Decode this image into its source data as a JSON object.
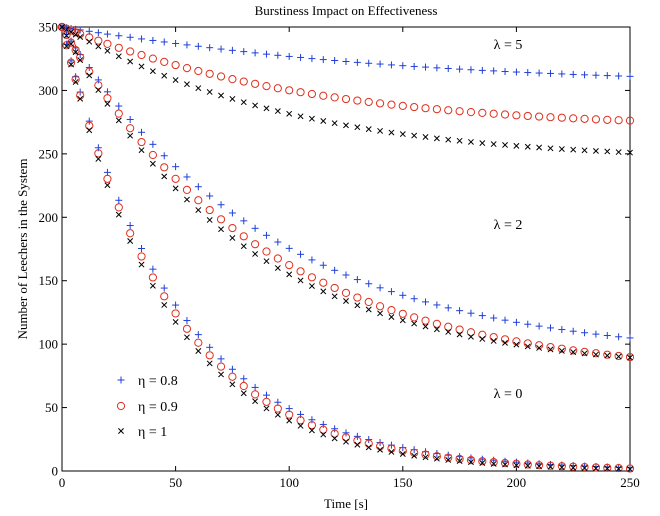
{
  "chart_data": {
    "type": "scatter",
    "title": "Burstiness Impact on Effectiveness",
    "xlabel": "Time [s]",
    "ylabel": "Number of Leechers in the System",
    "xlim": [
      0,
      250
    ],
    "ylim": [
      0,
      350
    ],
    "x_ticks": [
      0,
      50,
      100,
      150,
      200,
      250
    ],
    "y_ticks": [
      0,
      50,
      100,
      150,
      200,
      250,
      300,
      350
    ],
    "grid": false,
    "legend_position": "bottom-left",
    "x": [
      0,
      2,
      4,
      6,
      8,
      12,
      16,
      20,
      25,
      30,
      35,
      40,
      45,
      50,
      55,
      60,
      65,
      70,
      75,
      80,
      85,
      90,
      95,
      100,
      105,
      110,
      115,
      120,
      125,
      130,
      135,
      140,
      145,
      150,
      155,
      160,
      165,
      170,
      175,
      180,
      185,
      190,
      195,
      200,
      205,
      210,
      215,
      220,
      225,
      230,
      235,
      240,
      245,
      250
    ],
    "groups": [
      {
        "annotation": "λ = 5",
        "series": [
          {
            "name": "η = 0.8",
            "values": [
              350,
              349.4,
              348.8,
              348.2,
              347.7,
              346.6,
              345.5,
              344.4,
              343.1,
              341.9,
              340.6,
              339.4,
              338.2,
              337.0,
              335.9,
              334.8,
              333.7,
              332.6,
              331.6,
              330.6,
              329.6,
              328.6,
              327.7,
              326.8,
              326.0,
              325.1,
              324.3,
              323.6,
              322.8,
              322.1,
              321.4,
              320.8,
              320.1,
              319.5,
              318.9,
              318.4,
              317.8,
              317.3,
              316.8,
              316.3,
              315.8,
              315.4,
              314.9,
              314.5,
              314.1,
              313.7,
              313.4,
              313.0,
              312.6,
              312.3,
              312.0,
              311.7,
              311.4,
              311.1
            ]
          },
          {
            "name": "η = 0.9",
            "values": [
              350,
              348.6,
              347.2,
              345.8,
              344.5,
              341.8,
              339.2,
              336.7,
              333.6,
              330.7,
              327.9,
              325.1,
              322.5,
              320.0,
              317.6,
              315.3,
              313.1,
              311.0,
              308.9,
              307.0,
              305.2,
              303.4,
              301.7,
              300.1,
              298.6,
              297.2,
              295.8,
              294.5,
              293.2,
              292.0,
              290.9,
              289.8,
              288.8,
              287.8,
              286.9,
              286.0,
              285.2,
              284.4,
              283.6,
              282.9,
              282.3,
              281.6,
              281.0,
              280.4,
              279.9,
              279.4,
              278.9,
              278.5,
              278.0,
              277.6,
              277.2,
              276.8,
              276.5,
              276.2
            ]
          },
          {
            "name": "η = 1",
            "values": [
              350,
              348.0,
              346.0,
              344.0,
              342.1,
              338.4,
              334.7,
              331.2,
              326.9,
              322.8,
              318.9,
              315.2,
              311.6,
              308.2,
              304.9,
              301.8,
              298.8,
              296.0,
              293.3,
              290.7,
              288.2,
              285.9,
              283.7,
              281.6,
              279.6,
              277.7,
              275.9,
              274.2,
              272.5,
              271.0,
              269.5,
              268.1,
              266.8,
              265.6,
              264.4,
              263.3,
              262.2,
              261.2,
              260.3,
              259.4,
              258.5,
              257.7,
              257.0,
              256.3,
              255.6,
              255.0,
              254.4,
              253.8,
              253.3,
              252.8,
              252.3,
              251.9,
              251.4,
              251.0
            ]
          }
        ]
      },
      {
        "annotation": "λ = 2",
        "series": [
          {
            "name": "η = 0.8",
            "values": [
              350,
              344.4,
              338.9,
              333.5,
              328.3,
              318.1,
              308.3,
              298.9,
              287.7,
              277.1,
              267.0,
              257.5,
              248.5,
              239.9,
              231.8,
              224.1,
              216.8,
              209.9,
              203.4,
              197.2,
              191.3,
              185.8,
              180.5,
              175.5,
              170.8,
              166.4,
              162.2,
              158.2,
              154.5,
              150.9,
              147.6,
              144.4,
              141.4,
              138.5,
              135.8,
              133.3,
              130.9,
              128.6,
              126.4,
              124.4,
              122.5,
              120.6,
              118.9,
              117.2,
              115.7,
              114.2,
              112.8,
              111.5,
              110.2,
              109.0,
              107.9,
              106.8,
              105.8,
              104.9
            ]
          },
          {
            "name": "η = 0.9",
            "values": [
              350,
              343.8,
              337.7,
              331.8,
              326.0,
              314.8,
              304.1,
              293.9,
              281.7,
              270.2,
              259.3,
              249.1,
              239.4,
              230.3,
              221.6,
              213.4,
              205.7,
              198.4,
              191.5,
              185.0,
              178.8,
              173.0,
              167.5,
              162.3,
              157.4,
              152.7,
              148.4,
              144.3,
              140.4,
              136.7,
              133.2,
              129.9,
              126.8,
              123.9,
              121.1,
              118.5,
              116.0,
              113.7,
              111.5,
              109.4,
              107.4,
              105.6,
              103.8,
              102.2,
              100.6,
              99.1,
              97.7,
              96.4,
              95.1,
              93.9,
              92.8,
              91.7,
              90.7,
              89.8
            ]
          },
          {
            "name": "η = 1",
            "values": [
              350,
              343.2,
              336.6,
              330.2,
              323.9,
              311.8,
              300.3,
              289.4,
              276.4,
              264.3,
              252.9,
              242.2,
              232.2,
              222.8,
              214.0,
              205.7,
              197.9,
              190.6,
              183.7,
              177.2,
              171.1,
              165.4,
              160.0,
              155.0,
              150.2,
              145.8,
              141.6,
              137.7,
              134.0,
              130.6,
              127.3,
              124.3,
              121.4,
              118.8,
              116.2,
              113.9,
              111.7,
              109.6,
              107.6,
              105.8,
              104.1,
              102.5,
              101.0,
              99.6,
              98.2,
              97.0,
              95.8,
              94.7,
              93.7,
              92.7,
              91.8,
              91.0,
              90.2,
              89.4
            ]
          }
        ]
      },
      {
        "annotation": "λ = 0",
        "series": [
          {
            "name": "η = 0.8",
            "values": [
              350,
              336.4,
              323.3,
              310.8,
              298.7,
              275.8,
              254.8,
              235.4,
              213.4,
              193.5,
              175.4,
              159.1,
              144.2,
              130.8,
              118.6,
              107.5,
              97.5,
              88.4,
              80.2,
              72.7,
              65.9,
              59.8,
              54.2,
              49.2,
              44.6,
              40.4,
              36.7,
              33.3,
              30.1,
              27.3,
              24.8,
              22.5,
              20.4,
              18.5,
              16.8,
              15.2,
              13.8,
              12.5,
              11.3,
              10.3,
              9.3,
              8.5,
              7.7,
              7.0,
              6.3,
              5.7,
              5.2,
              4.7,
              4.3,
              3.9,
              3.5,
              3.2,
              2.9,
              2.6
            ]
          },
          {
            "name": "η = 0.9",
            "values": [
              350,
              335.6,
              321.9,
              308.7,
              296.0,
              272.2,
              250.4,
              230.3,
              207.8,
              187.4,
              169.1,
              152.6,
              137.7,
              124.2,
              112.1,
              101.1,
              91.2,
              82.3,
              74.3,
              67.0,
              60.4,
              54.5,
              49.2,
              44.4,
              40.0,
              36.1,
              32.6,
              29.4,
              26.5,
              23.9,
              21.6,
              19.5,
              17.6,
              15.9,
              14.3,
              12.9,
              11.6,
              10.5,
              9.5,
              8.6,
              7.7,
              7.0,
              6.3,
              5.7,
              5.1,
              4.6,
              4.2,
              3.8,
              3.4,
              3.1,
              2.8,
              2.5,
              2.3,
              2.0
            ]
          },
          {
            "name": "η = 1",
            "values": [
              350,
              334.9,
              320.4,
              306.6,
              293.4,
              268.6,
              246.0,
              225.3,
              202.1,
              181.3,
              162.7,
              146.0,
              130.9,
              117.5,
              105.4,
              94.6,
              84.8,
              76.1,
              68.3,
              61.3,
              55.0,
              49.3,
              44.3,
              39.7,
              35.6,
              32.0,
              28.7,
              25.7,
              23.1,
              20.7,
              18.6,
              16.7,
              15.0,
              13.4,
              12.0,
              10.8,
              9.7,
              8.7,
              7.8,
              7.0,
              6.3,
              5.6,
              5.1,
              4.5,
              4.1,
              3.7,
              3.3,
              2.9,
              2.6,
              2.4,
              2.1,
              1.9,
              1.7,
              1.5
            ]
          }
        ]
      }
    ],
    "legend": [
      {
        "label": "η = 0.8",
        "marker": "plus",
        "color": "#1f3fd9"
      },
      {
        "label": "η = 0.9",
        "marker": "circle",
        "color": "#e0301e"
      },
      {
        "label": "η = 1",
        "marker": "x",
        "color": "#000000"
      }
    ]
  }
}
